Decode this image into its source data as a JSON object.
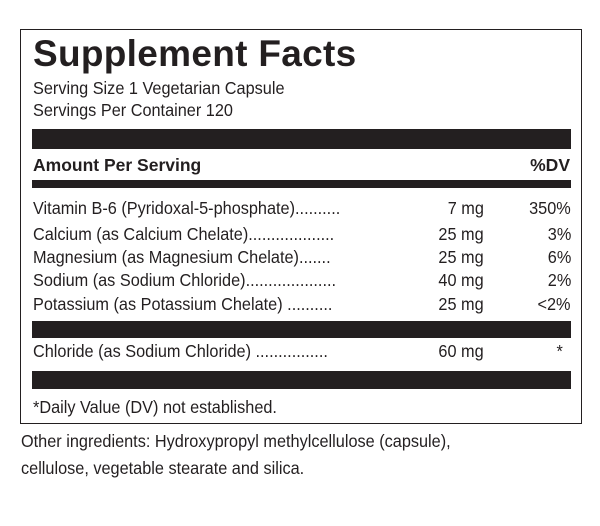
{
  "title": "Supplement Facts",
  "serving_size": "Serving Size 1 Vegetarian Capsule",
  "servings_per_container": "Servings Per Container 120",
  "header": {
    "amount_label": "Amount Per Serving",
    "dv_label": "%DV"
  },
  "nutrients": [
    {
      "name": "Vitamin B-6 (Pyridoxal-5-phosphate)..........",
      "amount": "7 mg",
      "dv": "350%"
    },
    {
      "name": "Calcium (as Calcium Chelate)...................",
      "amount": "25 mg",
      "dv": "3%"
    },
    {
      "name": "Magnesium (as Magnesium Chelate).......",
      "amount": "25 mg",
      "dv": "6%"
    },
    {
      "name": "Sodium (as Sodium Chloride)....................",
      "amount": "40 mg",
      "dv": "2%"
    },
    {
      "name": "Potassium (as Potassium Chelate) ..........",
      "amount": "25 mg",
      "dv": "<2%"
    }
  ],
  "other_nutrients": [
    {
      "name": "Chloride (as Sodium Chloride) ................",
      "amount": "60 mg",
      "dv": "*"
    }
  ],
  "footnote": "*Daily Value (DV) not established.",
  "other_ingredients": [
    "Other ingredients: Hydroxypropyl methylcellulose (capsule),",
    "cellulose, vegetable stearate and silica."
  ]
}
